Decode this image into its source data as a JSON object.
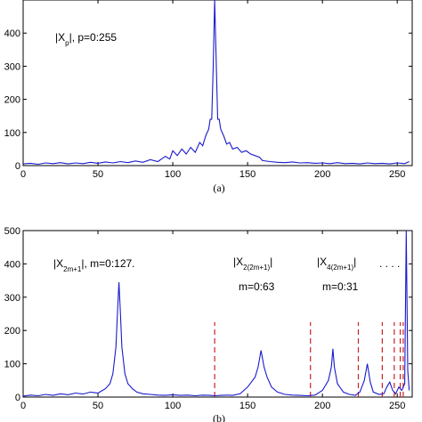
{
  "chart_data": [
    {
      "type": "line",
      "panel_caption": "(a)",
      "xlim": [
        0,
        260
      ],
      "ylim": [
        0,
        500
      ],
      "x_ticks": [
        0,
        50,
        100,
        150,
        200,
        250
      ],
      "y_ticks": [
        0,
        100,
        200,
        300,
        400
      ],
      "annotation": {
        "main": "|X",
        "sub": "p",
        "rest": "|, p=0:255"
      },
      "series": [
        {
          "color": "#1a1acc",
          "points": [
            [
              0,
              5
            ],
            [
              5,
              7
            ],
            [
              10,
              4
            ],
            [
              15,
              8
            ],
            [
              20,
              6
            ],
            [
              25,
              9
            ],
            [
              30,
              5
            ],
            [
              35,
              8
            ],
            [
              40,
              6
            ],
            [
              45,
              10
            ],
            [
              50,
              7
            ],
            [
              55,
              11
            ],
            [
              60,
              8
            ],
            [
              65,
              12
            ],
            [
              70,
              9
            ],
            [
              75,
              14
            ],
            [
              80,
              10
            ],
            [
              85,
              18
            ],
            [
              90,
              12
            ],
            [
              95,
              28
            ],
            [
              98,
              20
            ],
            [
              100,
              45
            ],
            [
              103,
              30
            ],
            [
              106,
              50
            ],
            [
              109,
              35
            ],
            [
              112,
              55
            ],
            [
              115,
              40
            ],
            [
              118,
              70
            ],
            [
              120,
              60
            ],
            [
              122,
              90
            ],
            [
              124,
              110
            ],
            [
              125,
              140
            ],
            [
              126,
              140
            ],
            [
              127,
              300
            ],
            [
              128,
              520
            ],
            [
              129,
              320
            ],
            [
              130,
              140
            ],
            [
              131,
              140
            ],
            [
              132,
              110
            ],
            [
              134,
              90
            ],
            [
              136,
              65
            ],
            [
              138,
              70
            ],
            [
              140,
              50
            ],
            [
              143,
              55
            ],
            [
              146,
              40
            ],
            [
              149,
              45
            ],
            [
              152,
              35
            ],
            [
              155,
              30
            ],
            [
              158,
              25
            ],
            [
              160,
              15
            ],
            [
              165,
              12
            ],
            [
              170,
              10
            ],
            [
              175,
              9
            ],
            [
              180,
              11
            ],
            [
              185,
              8
            ],
            [
              190,
              9
            ],
            [
              195,
              7
            ],
            [
              200,
              8
            ],
            [
              205,
              6
            ],
            [
              210,
              9
            ],
            [
              215,
              6
            ],
            [
              220,
              7
            ],
            [
              225,
              5
            ],
            [
              230,
              8
            ],
            [
              235,
              6
            ],
            [
              240,
              7
            ],
            [
              245,
              5
            ],
            [
              250,
              8
            ],
            [
              255,
              6
            ],
            [
              258,
              12
            ]
          ]
        }
      ]
    },
    {
      "type": "line",
      "panel_caption": "(b)",
      "xlim": [
        0,
        260
      ],
      "ylim": [
        0,
        500
      ],
      "x_ticks": [
        0,
        50,
        100,
        150,
        200,
        250
      ],
      "y_ticks": [
        0,
        100,
        200,
        300,
        400,
        500
      ],
      "annotations": [
        {
          "main": "|X",
          "sub": "2m+1",
          "rest": "|, m=0:127."
        },
        {
          "main": "|X",
          "sub": "2(2m+1)",
          "rest": "|",
          "line2": "m=0:63"
        },
        {
          "main": "|X",
          "sub": "4(2m+1)",
          "rest": "|",
          "line2": "m=0:31"
        },
        {
          "main": ". . . ."
        }
      ],
      "dashed_x": [
        128,
        192,
        224,
        240,
        248,
        252,
        254
      ],
      "dashed_color": "#cc2222",
      "series": [
        {
          "color": "#1a1acc",
          "points": [
            [
              0,
              3
            ],
            [
              5,
              6
            ],
            [
              10,
              4
            ],
            [
              15,
              8
            ],
            [
              20,
              5
            ],
            [
              25,
              10
            ],
            [
              30,
              7
            ],
            [
              35,
              12
            ],
            [
              40,
              9
            ],
            [
              45,
              15
            ],
            [
              50,
              12
            ],
            [
              55,
              25
            ],
            [
              58,
              40
            ],
            [
              60,
              70
            ],
            [
              62,
              150
            ],
            [
              63,
              250
            ],
            [
              64,
              345
            ],
            [
              65,
              250
            ],
            [
              66,
              150
            ],
            [
              68,
              70
            ],
            [
              70,
              40
            ],
            [
              73,
              25
            ],
            [
              76,
              15
            ],
            [
              80,
              10
            ],
            [
              85,
              8
            ],
            [
              90,
              6
            ],
            [
              95,
              5
            ],
            [
              100,
              7
            ],
            [
              105,
              5
            ],
            [
              110,
              6
            ],
            [
              115,
              4
            ],
            [
              120,
              6
            ],
            [
              125,
              5
            ],
            [
              128,
              4
            ],
            [
              132,
              5
            ],
            [
              136,
              6
            ],
            [
              140,
              5
            ],
            [
              145,
              10
            ],
            [
              150,
              30
            ],
            [
              155,
              60
            ],
            [
              157,
              90
            ],
            [
              159,
              140
            ],
            [
              161,
              90
            ],
            [
              163,
              60
            ],
            [
              166,
              30
            ],
            [
              170,
              15
            ],
            [
              175,
              8
            ],
            [
              180,
              6
            ],
            [
              185,
              5
            ],
            [
              190,
              4
            ],
            [
              195,
              6
            ],
            [
              200,
              20
            ],
            [
              204,
              50
            ],
            [
              206,
              90
            ],
            [
              207,
              145
            ],
            [
              208,
              90
            ],
            [
              210,
              40
            ],
            [
              214,
              15
            ],
            [
              218,
              8
            ],
            [
              222,
              5
            ],
            [
              225,
              15
            ],
            [
              228,
              50
            ],
            [
              230,
              100
            ],
            [
              232,
              45
            ],
            [
              234,
              15
            ],
            [
              238,
              8
            ],
            [
              241,
              10
            ],
            [
              243,
              30
            ],
            [
              245,
              45
            ],
            [
              247,
              20
            ],
            [
              249,
              10
            ],
            [
              251,
              30
            ],
            [
              253,
              20
            ],
            [
              255,
              40
            ],
            [
              256,
              520
            ],
            [
              257,
              80
            ],
            [
              258,
              20
            ]
          ]
        }
      ]
    }
  ]
}
